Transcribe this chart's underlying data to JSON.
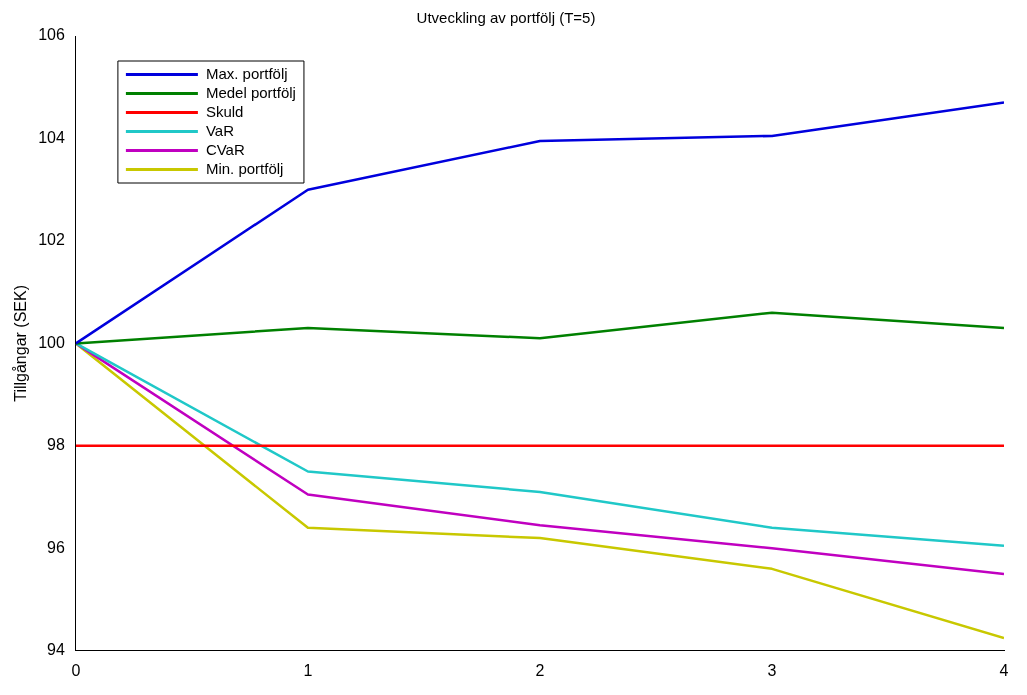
{
  "chart_data": {
    "type": "line",
    "title": "Utveckling av portfölj (T=5)",
    "ylabel": "Tillgångar (SEK)",
    "x": [
      0,
      1,
      2,
      3,
      4
    ],
    "xlim": [
      0,
      4
    ],
    "xticks": [
      0,
      1,
      2,
      3,
      4
    ],
    "ylim": [
      94,
      106
    ],
    "yticks": [
      94,
      96,
      98,
      100,
      102,
      104,
      106
    ],
    "grid": false,
    "legend": "top left",
    "marker": "none",
    "line_style": "solid",
    "series": [
      {
        "name": "Max. portfölj",
        "color": "#0000dd",
        "values": [
          100,
          103.0,
          103.95,
          104.05,
          104.7
        ]
      },
      {
        "name": "Medel portfölj",
        "color": "#008000",
        "values": [
          100,
          100.3,
          100.1,
          100.6,
          100.3
        ]
      },
      {
        "name": "Skuld",
        "color": "#ff0000",
        "values": [
          98,
          98,
          98,
          98,
          98
        ]
      },
      {
        "name": "VaR",
        "color": "#20c8c8",
        "values": [
          100,
          97.5,
          97.1,
          96.4,
          96.05
        ]
      },
      {
        "name": "CVaR",
        "color": "#c000c0",
        "values": [
          100,
          97.05,
          96.45,
          96.0,
          95.5
        ]
      },
      {
        "name": "Min. portfölj",
        "color": "#c8c800",
        "values": [
          100,
          96.4,
          96.2,
          95.6,
          94.25
        ]
      }
    ]
  }
}
